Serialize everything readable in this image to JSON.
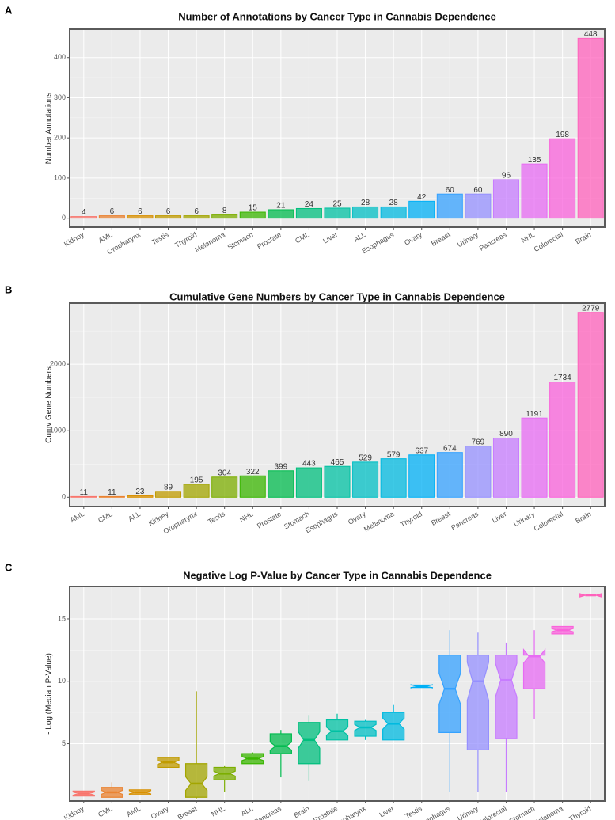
{
  "chart_data": [
    {
      "type": "bar",
      "panel_label": "A",
      "title": "Number of Annotations by Cancer Type in Cannabis Dependence",
      "y_label": "Number Annotations",
      "categories": [
        "Kidney",
        "AML",
        "Oropharynx",
        "Testis",
        "Thyroid",
        "Melanoma",
        "Stomach",
        "Prostate",
        "CML",
        "Liver",
        "ALL",
        "Esophagus",
        "Ovary",
        "Breast",
        "Urinary",
        "Pancreas",
        "NHL",
        "Colorectal",
        "Brain"
      ],
      "values": [
        4,
        6,
        6,
        6,
        6,
        8,
        15,
        21,
        24,
        25,
        28,
        28,
        42,
        60,
        60,
        96,
        135,
        198,
        448
      ],
      "colors": [
        "#F8766D",
        "#EA8331",
        "#D89000",
        "#C09B00",
        "#A3A500",
        "#7CAE00",
        "#39B600",
        "#00BB4E",
        "#00BF7D",
        "#00C1A3",
        "#00BFC4",
        "#00BAE0",
        "#00B0F6",
        "#35A2FF",
        "#9590FF",
        "#C77CFF",
        "#E76BF3",
        "#FA62DB",
        "#FF62BC"
      ],
      "ylim": [
        -22.4,
        470.4
      ],
      "yticks": [
        0,
        100,
        200,
        300,
        400
      ],
      "grid": true
    },
    {
      "type": "bar",
      "panel_label": "B",
      "title": "Cumulative Gene Numbers by Cancer Type in Cannabis Dependence",
      "y_label": "Cumv Gene Numbers",
      "categories": [
        "AML",
        "CML",
        "ALL",
        "Kidney",
        "Oropharynx",
        "Testis",
        "NHL",
        "Prostate",
        "Stomach",
        "Esophagus",
        "Ovary",
        "Melanoma",
        "Thyroid",
        "Breast",
        "Pancreas",
        "Liver",
        "Urinary",
        "Colorectal",
        "Brain"
      ],
      "values": [
        11,
        11,
        23,
        89,
        195,
        304,
        322,
        399,
        443,
        465,
        529,
        579,
        637,
        674,
        769,
        890,
        1191,
        1734,
        2779
      ],
      "colors": [
        "#F8766D",
        "#EA8331",
        "#D89000",
        "#C09B00",
        "#A3A500",
        "#7CAE00",
        "#39B600",
        "#00BB4E",
        "#00BF7D",
        "#00C1A3",
        "#00BFC4",
        "#00BAE0",
        "#00B0F6",
        "#35A2FF",
        "#9590FF",
        "#C77CFF",
        "#E76BF3",
        "#FA62DB",
        "#FF62BC"
      ],
      "ylim": [
        -138.95,
        2917.95
      ],
      "yticks": [
        0,
        1000,
        2000,
        3000
      ],
      "grid": true
    },
    {
      "type": "box",
      "panel_label": "C",
      "title": "Negative Log P-Value by Cancer Type in Cannabis Dependence",
      "y_label": "- Log (Median P-Value)",
      "categories": [
        "Kidney",
        "CML",
        "AML",
        "Ovary",
        "Breast",
        "NHL",
        "ALL",
        "Pancreas",
        "Brain",
        "Prostate",
        "Oropharynx",
        "Liver",
        "Testis",
        "Esophagus",
        "Urinary",
        "Colorectal",
        "Stomach",
        "Melanoma",
        "Thyroid"
      ],
      "low": [
        0.8,
        0.7,
        0.9,
        3.1,
        0.6,
        1.1,
        3.4,
        2.3,
        2.0,
        5.3,
        5.3,
        5.3,
        9.5,
        1.1,
        1.1,
        1.1,
        7.0,
        13.8,
        16.9
      ],
      "q1": [
        0.8,
        0.7,
        0.9,
        3.1,
        0.7,
        2.1,
        3.4,
        4.2,
        3.4,
        5.3,
        5.6,
        5.3,
        9.5,
        5.9,
        4.5,
        5.4,
        9.4,
        13.8,
        16.9
      ],
      "median": [
        1.0,
        1.1,
        1.1,
        3.5,
        1.8,
        2.6,
        3.8,
        4.8,
        5.3,
        6.0,
        6.3,
        6.6,
        9.6,
        9.4,
        10.0,
        10.1,
        12.0,
        14.1,
        16.9
      ],
      "q3": [
        1.2,
        1.5,
        1.3,
        3.9,
        3.4,
        3.1,
        4.2,
        5.8,
        6.7,
        6.9,
        6.8,
        7.5,
        9.7,
        12.1,
        12.1,
        12.1,
        12.1,
        14.4,
        16.9
      ],
      "high": [
        1.2,
        1.9,
        1.3,
        3.9,
        9.2,
        3.2,
        4.3,
        6.1,
        7.3,
        7.4,
        6.9,
        8.1,
        9.7,
        14.1,
        13.9,
        13.1,
        14.1,
        14.4,
        16.9
      ],
      "colors": [
        "#F8766D",
        "#EA8331",
        "#D89000",
        "#C09B00",
        "#A3A500",
        "#7CAE00",
        "#39B600",
        "#00BB4E",
        "#00BF7D",
        "#00C1A3",
        "#00BFC4",
        "#00BAE0",
        "#00B0F6",
        "#35A2FF",
        "#9590FF",
        "#C77CFF",
        "#E76BF3",
        "#FA62DB",
        "#FF62BC"
      ],
      "ylim": [
        0.4,
        17.6
      ],
      "yticks": [
        5,
        10,
        15
      ],
      "grid": true
    }
  ]
}
